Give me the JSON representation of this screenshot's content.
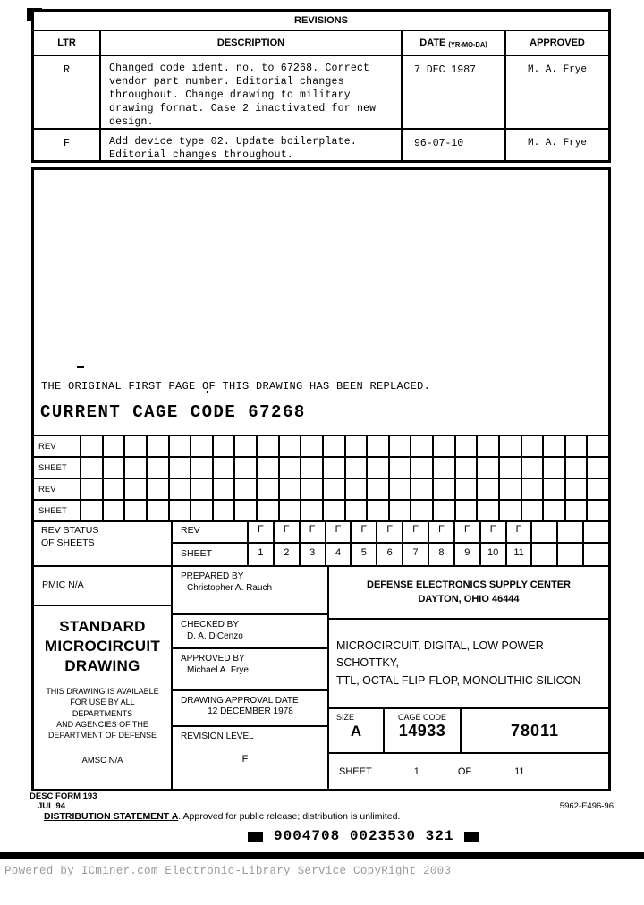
{
  "revisions": {
    "title": "REVISIONS",
    "columns": {
      "ltr": "LTR",
      "description": "DESCRIPTION",
      "date": "DATE",
      "date_note": "(YR-MO-DA)",
      "approved": "APPROVED"
    },
    "rows": [
      {
        "ltr": "R",
        "description": "Changed code ident. no. to 67268.  Correct\nvendor part number.  Editorial changes\nthroughout.  Change drawing to military\ndrawing format.  Case 2 inactivated for new\ndesign.",
        "date": "7 DEC 1987",
        "approved": "M. A. Frye"
      },
      {
        "ltr": "F",
        "description": "Add device type 02.  Update boilerplate.\nEditorial changes throughout.",
        "date": "96-07-10",
        "approved": "M. A. Frye"
      }
    ]
  },
  "body": {
    "replaced_note": "THE ORIGINAL FIRST PAGE OF THIS DRAWING HAS BEEN REPLACED.",
    "current_cage": "CURRENT CAGE CODE 67268"
  },
  "rev_sheet_grid": {
    "row_labels": [
      "REV",
      "SHEET",
      "REV",
      "SHEET"
    ],
    "columns": 24
  },
  "rev_status": {
    "label": "REV STATUS\nOF SHEETS",
    "rev_label": "REV",
    "sheet_label": "SHEET",
    "rev_values": [
      "F",
      "F",
      "F",
      "F",
      "F",
      "F",
      "F",
      "F",
      "F",
      "F",
      "F",
      "",
      "",
      ""
    ],
    "sheet_values": [
      "1",
      "2",
      "3",
      "4",
      "5",
      "6",
      "7",
      "8",
      "9",
      "10",
      "11",
      "",
      "",
      ""
    ]
  },
  "title_block": {
    "pmic": "PMIC N/A",
    "smd_title": "STANDARD\nMICROCIRCUIT\nDRAWING",
    "availability": "THIS DRAWING IS AVAILABLE\nFOR USE BY ALL\nDEPARTMENTS\nAND AGENCIES OF THE\nDEPARTMENT OF DEFENSE",
    "amsc": "AMSC N/A",
    "prepared_by_label": "PREPARED BY",
    "prepared_by": "Christopher A. Rauch",
    "checked_by_label": "CHECKED BY",
    "checked_by": "D. A. DiCenzo",
    "approved_by_label": "APPROVED BY",
    "approved_by": "Michael A. Frye",
    "approval_date_label": "DRAWING APPROVAL DATE",
    "approval_date": "12 DECEMBER 1978",
    "revision_level_label": "REVISION LEVEL",
    "revision_level": "F",
    "center_name": "DEFENSE ELECTRONICS SUPPLY CENTER",
    "center_location": "DAYTON, OHIO  46444",
    "device_title": "MICROCIRCUIT, DIGITAL, LOW POWER SCHOTTKY,\nTTL, OCTAL FLIP-FLOP, MONOLITHIC SILICON",
    "size_label": "SIZE",
    "size": "A",
    "cage_code_label": "CAGE CODE",
    "cage_code": "14933",
    "drawing_number": "78011",
    "sheet_label": "SHEET",
    "sheet_number": "1",
    "of_label": "OF",
    "sheet_total": "11"
  },
  "footer": {
    "form": "DESC FORM 193",
    "form_date": "JUL 94",
    "doc_number": "5962-E496-96",
    "distribution_title": "DISTRIBUTION STATEMENT A",
    "distribution_rest": ".  Approved for public release; distribution is unlimited.",
    "barcode_text": "9004708 0023530 321",
    "powered_by": "Powered by ICminer.com Electronic-Library Service CopyRight 2003"
  }
}
